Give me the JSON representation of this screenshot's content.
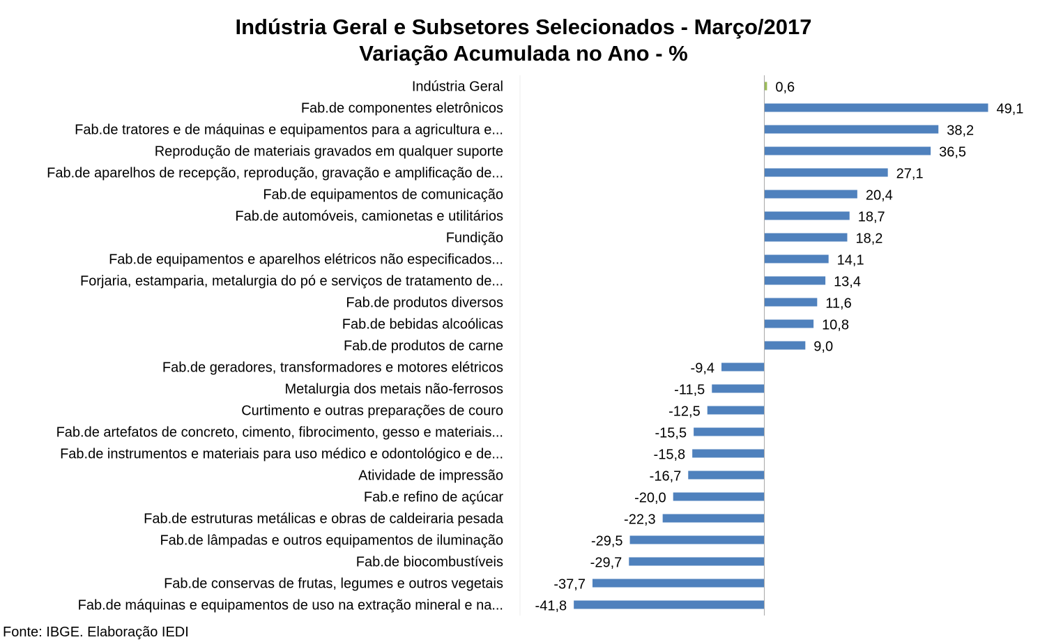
{
  "chart_data": {
    "type": "bar",
    "orientation": "horizontal",
    "title": "Indústria Geral e Subsetores Selecionados - Março/2017",
    "subtitle": "Variação Acumulada no Ano - %",
    "categories": [
      "Indústria Geral",
      "Fab.de componentes eletrônicos",
      "Fab.de tratores e de máquinas e equipamentos para a agricultura e...",
      "Reprodução de materiais gravados em qualquer suporte",
      "Fab.de aparelhos de recepção, reprodução, gravação e amplificação de...",
      "Fab.de equipamentos de comunicação",
      "Fab.de automóveis, camionetas e utilitários",
      "Fundição",
      "Fab.de equipamentos e aparelhos elétricos não especificados...",
      "Forjaria, estamparia, metalurgia do pó e serviços de tratamento de...",
      "Fab.de produtos diversos",
      "Fab.de bebidas alcoólicas",
      "Fab.de produtos de carne",
      "Fab.de geradores, transformadores e motores elétricos",
      "Metalurgia dos metais não-ferrosos",
      "Curtimento e outras preparações de couro",
      "Fab.de artefatos de concreto, cimento, fibrocimento, gesso e materiais...",
      "Fab.de instrumentos e materiais para uso médico e odontológico e de...",
      "Atividade de impressão",
      "Fab.e refino de açúcar",
      "Fab.de estruturas metálicas e obras de caldeiraria pesada",
      "Fab.de lâmpadas e outros equipamentos de iluminação",
      "Fab.de biocombustíveis",
      "Fab.de conservas de frutas, legumes e outros vegetais",
      "Fab.de máquinas e equipamentos de uso na extração mineral e na..."
    ],
    "values": [
      0.6,
      49.1,
      38.2,
      36.5,
      27.1,
      20.4,
      18.7,
      18.2,
      14.1,
      13.4,
      11.6,
      10.8,
      9.0,
      -9.4,
      -11.5,
      -12.5,
      -15.5,
      -15.8,
      -16.7,
      -20.0,
      -22.3,
      -29.5,
      -29.7,
      -37.7,
      -41.8
    ],
    "value_labels": [
      "0,6",
      "49,1",
      "38,2",
      "36,5",
      "27,1",
      "20,4",
      "18,7",
      "18,2",
      "14,1",
      "13,4",
      "11,6",
      "10,8",
      "9,0",
      "-9,4",
      "-11,5",
      "-12,5",
      "-15,5",
      "-15,8",
      "-16,7",
      "-20,0",
      "-22,3",
      "-29,5",
      "-29,7",
      "-37,7",
      "-41,8"
    ],
    "highlight_index": 0,
    "colors": {
      "bar": "#4f81bd",
      "highlight": "#9bbb59",
      "axis": "#a6a6a6"
    },
    "xlim": [
      -53.6,
      60.8
    ],
    "grid": false,
    "legend": "none",
    "source": "Fonte: IBGE. Elaboração IEDI"
  }
}
